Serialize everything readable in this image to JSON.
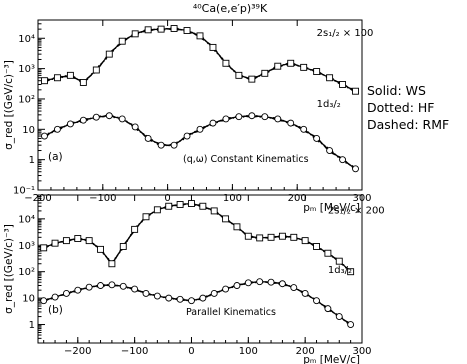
{
  "title": "⁴⁰Ca(e,e′p)³⁹K",
  "legend": [
    {
      "label": "Solid: WS"
    },
    {
      "label": "Dotted: HF"
    },
    {
      "label": "Dashed: RMF"
    }
  ],
  "chart_data": [
    {
      "type": "scatter",
      "panel_label": "(a)",
      "kinematics_label": "(q,ω) Constant Kinematics",
      "xlabel": "p_m [MeV/c]",
      "ylabel": "σ_red [(GeV/c)⁻³]",
      "xlim": [
        -200,
        300
      ],
      "ylim": [
        0.1,
        40000
      ],
      "yscale": "log",
      "xticks": [
        -200,
        -100,
        0,
        100,
        200,
        300
      ],
      "xtick_labels": [
        "−200",
        "−100",
        "0",
        "100",
        "200",
        "300"
      ],
      "yticks": [
        0.1,
        1,
        10,
        100,
        1000,
        10000
      ],
      "ytick_labels": [
        "10⁻¹",
        "1",
        "10",
        "10²",
        "10³",
        "10⁴"
      ],
      "series": [
        {
          "name": "2s1/2 × 100",
          "marker": "square",
          "x": [
            -190,
            -170,
            -150,
            -130,
            -110,
            -90,
            -70,
            -50,
            -30,
            -10,
            10,
            30,
            50,
            70,
            90,
            110,
            130,
            150,
            170,
            190,
            210,
            230,
            250,
            270,
            290
          ],
          "y": [
            400,
            500,
            600,
            350,
            900,
            3000,
            8000,
            14000,
            19000,
            20000,
            21000,
            18000,
            12000,
            5000,
            1500,
            600,
            450,
            700,
            1200,
            1500,
            1100,
            800,
            500,
            300,
            180
          ]
        },
        {
          "name": "1d3/2",
          "marker": "circle",
          "x": [
            -190,
            -170,
            -150,
            -130,
            -110,
            -90,
            -70,
            -50,
            -30,
            -10,
            10,
            30,
            50,
            70,
            90,
            110,
            130,
            150,
            170,
            190,
            210,
            230,
            250,
            270,
            290
          ],
          "y": [
            6,
            10,
            15,
            20,
            25,
            28,
            22,
            12,
            5,
            3,
            3,
            6,
            10,
            16,
            22,
            26,
            28,
            26,
            22,
            16,
            10,
            5,
            2,
            1,
            0.5
          ]
        }
      ]
    },
    {
      "type": "scatter",
      "panel_label": "(b)",
      "kinematics_label": "Parallel Kinematics",
      "xlabel": "p_m [MeV/c]",
      "ylabel": "σ_red [(GeV/c)⁻³]",
      "xlim": [
        -270,
        300
      ],
      "ylim": [
        0.2,
        80000
      ],
      "yscale": "log",
      "xticks": [
        -200,
        -100,
        0,
        100,
        200,
        300
      ],
      "xtick_labels": [
        "−200",
        "−100",
        "0",
        "100",
        "200",
        "300"
      ],
      "yticks": [
        1,
        10,
        100,
        1000,
        10000
      ],
      "ytick_labels": [
        "1",
        "10",
        "10²",
        "10³",
        "10⁴"
      ],
      "series": [
        {
          "name": "2s1/2 × 200",
          "marker": "square",
          "x": [
            -260,
            -240,
            -220,
            -200,
            -180,
            -160,
            -140,
            -120,
            -100,
            -80,
            -60,
            -40,
            -20,
            0,
            20,
            40,
            60,
            80,
            100,
            120,
            140,
            160,
            180,
            200,
            220,
            240,
            260,
            280
          ],
          "y": [
            800,
            1200,
            1500,
            1800,
            1500,
            700,
            200,
            900,
            4000,
            12000,
            22000,
            30000,
            35000,
            38000,
            30000,
            20000,
            10000,
            5000,
            2200,
            1900,
            2000,
            2200,
            2000,
            1500,
            900,
            500,
            250,
            100
          ]
        },
        {
          "name": "1d3/2",
          "marker": "circle",
          "x": [
            -260,
            -240,
            -220,
            -200,
            -180,
            -160,
            -140,
            -120,
            -100,
            -80,
            -60,
            -40,
            -20,
            0,
            20,
            40,
            60,
            80,
            100,
            120,
            140,
            160,
            180,
            200,
            220,
            240,
            260,
            280
          ],
          "y": [
            8,
            11,
            15,
            20,
            26,
            30,
            32,
            28,
            22,
            15,
            12,
            10,
            9,
            8,
            10,
            15,
            22,
            30,
            38,
            42,
            40,
            35,
            25,
            15,
            8,
            4,
            2,
            1
          ]
        }
      ]
    }
  ]
}
